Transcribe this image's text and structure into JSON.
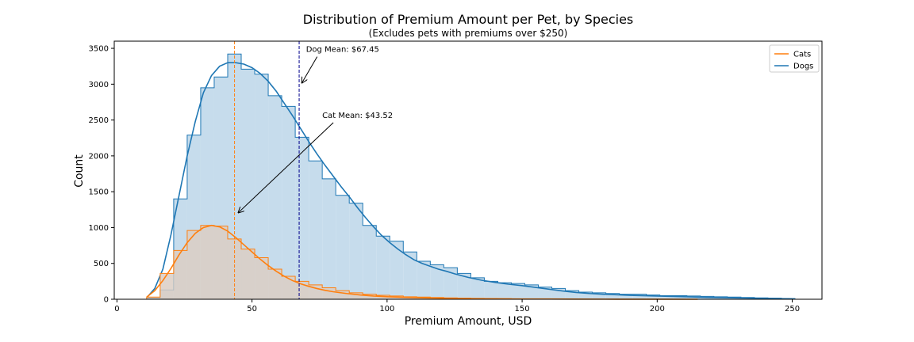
{
  "chart_data": {
    "type": "histogram",
    "title": "Distribution of Premium Amount per Pet, by Species",
    "subtitle": "(Excludes pets with premiums over $250)",
    "xlabel": "Premium Amount, USD",
    "ylabel": "Count",
    "xlim": [
      -1,
      261
    ],
    "ylim": [
      0,
      3600
    ],
    "xticks": [
      0,
      50,
      100,
      150,
      200,
      250
    ],
    "yticks": [
      0,
      500,
      1000,
      1500,
      2000,
      2500,
      3000,
      3500
    ],
    "grid": false,
    "legend_position": "top-right",
    "bin_width": 5,
    "series": [
      {
        "name": "Dogs",
        "color": "#1f77b4",
        "fill": "#c6dcec",
        "bin_start": 11,
        "counts": [
          20,
          130,
          1400,
          2290,
          2950,
          3100,
          3420,
          3210,
          3140,
          2840,
          2690,
          2260,
          1930,
          1680,
          1450,
          1340,
          1030,
          880,
          810,
          660,
          530,
          480,
          440,
          360,
          300,
          250,
          230,
          220,
          200,
          170,
          150,
          120,
          100,
          90,
          80,
          70,
          70,
          60,
          50,
          50,
          45,
          40,
          35,
          30,
          25,
          20,
          15,
          10
        ],
        "kde": [
          [
            11,
            20
          ],
          [
            14,
            150
          ],
          [
            17,
            420
          ],
          [
            20,
            900
          ],
          [
            23,
            1450
          ],
          [
            26,
            2000
          ],
          [
            29,
            2480
          ],
          [
            32,
            2880
          ],
          [
            35,
            3120
          ],
          [
            38,
            3250
          ],
          [
            41,
            3300
          ],
          [
            44,
            3300
          ],
          [
            47,
            3280
          ],
          [
            50,
            3230
          ],
          [
            53,
            3150
          ],
          [
            56,
            3040
          ],
          [
            59,
            2900
          ],
          [
            62,
            2730
          ],
          [
            65,
            2560
          ],
          [
            68,
            2380
          ],
          [
            71,
            2200
          ],
          [
            74,
            2030
          ],
          [
            77,
            1870
          ],
          [
            80,
            1720
          ],
          [
            83,
            1570
          ],
          [
            86,
            1430
          ],
          [
            89,
            1280
          ],
          [
            92,
            1140
          ],
          [
            95,
            1010
          ],
          [
            98,
            890
          ],
          [
            101,
            790
          ],
          [
            104,
            700
          ],
          [
            107,
            620
          ],
          [
            110,
            550
          ],
          [
            113,
            500
          ],
          [
            116,
            460
          ],
          [
            119,
            420
          ],
          [
            122,
            390
          ],
          [
            125,
            355
          ],
          [
            130,
            305
          ],
          [
            135,
            265
          ],
          [
            140,
            235
          ],
          [
            145,
            210
          ],
          [
            150,
            190
          ],
          [
            155,
            165
          ],
          [
            160,
            140
          ],
          [
            165,
            115
          ],
          [
            170,
            95
          ],
          [
            175,
            80
          ],
          [
            180,
            70
          ],
          [
            185,
            62
          ],
          [
            190,
            55
          ],
          [
            200,
            45
          ],
          [
            210,
            35
          ],
          [
            220,
            25
          ],
          [
            230,
            18
          ],
          [
            240,
            12
          ],
          [
            250,
            5
          ]
        ],
        "mean": 67.45,
        "mean_label": "Dog Mean: $67.45"
      },
      {
        "name": "Cats",
        "color": "#ff7f0e",
        "fill": "#dacec4",
        "bin_start": 11,
        "counts": [
          30,
          360,
          680,
          960,
          1030,
          1020,
          840,
          700,
          580,
          420,
          320,
          250,
          200,
          160,
          120,
          90,
          70,
          55,
          45,
          35,
          30,
          25,
          20,
          15,
          12,
          10,
          8,
          6,
          5,
          4,
          3,
          2,
          2,
          1,
          1,
          0,
          0,
          0,
          0,
          0,
          0,
          0,
          0,
          0,
          0,
          0,
          0,
          0
        ],
        "kde": [
          [
            11,
            30
          ],
          [
            14,
            120
          ],
          [
            17,
            260
          ],
          [
            20,
            430
          ],
          [
            23,
            620
          ],
          [
            26,
            790
          ],
          [
            29,
            920
          ],
          [
            32,
            1000
          ],
          [
            35,
            1030
          ],
          [
            38,
            1010
          ],
          [
            41,
            950
          ],
          [
            44,
            860
          ],
          [
            47,
            760
          ],
          [
            50,
            660
          ],
          [
            53,
            560
          ],
          [
            56,
            470
          ],
          [
            59,
            390
          ],
          [
            62,
            320
          ],
          [
            65,
            260
          ],
          [
            68,
            215
          ],
          [
            71,
            180
          ],
          [
            74,
            150
          ],
          [
            77,
            125
          ],
          [
            80,
            105
          ],
          [
            85,
            80
          ],
          [
            90,
            60
          ],
          [
            95,
            45
          ],
          [
            100,
            35
          ],
          [
            110,
            22
          ],
          [
            120,
            14
          ],
          [
            130,
            9
          ],
          [
            140,
            6
          ],
          [
            150,
            4
          ],
          [
            160,
            3
          ],
          [
            170,
            2
          ],
          [
            185,
            1
          ],
          [
            200,
            1
          ],
          [
            215,
            0
          ]
        ],
        "mean": 43.52,
        "mean_label": "Cat Mean: $43.52"
      }
    ],
    "annotations": [
      {
        "series": "Dogs",
        "text": "Dog Mean: $67.45",
        "text_at": [
          70,
          3450
        ],
        "arrow_to": [
          68.5,
          3020
        ]
      },
      {
        "series": "Cats",
        "text": "Cat Mean: $43.52",
        "text_at": [
          76,
          2530
        ],
        "arrow_to": [
          45,
          1210
        ]
      }
    ]
  }
}
